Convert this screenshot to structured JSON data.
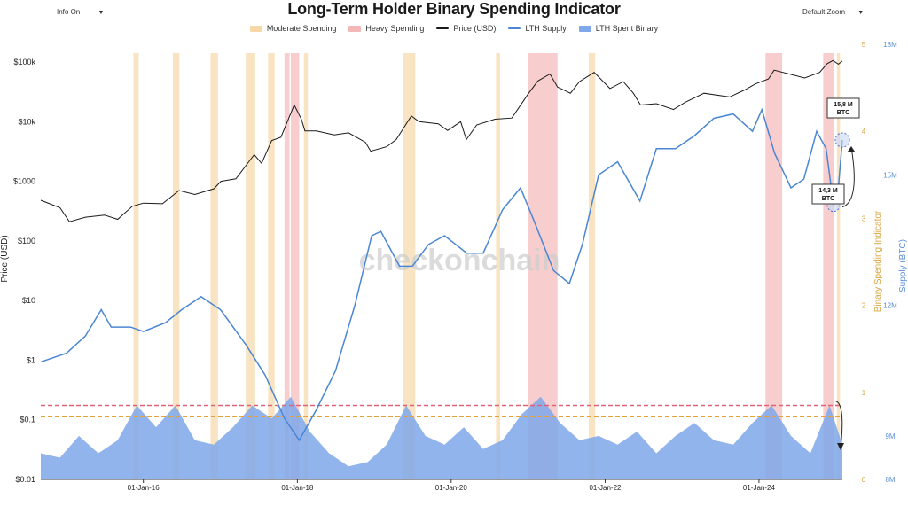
{
  "header": {
    "title": "Long-Term Holder Binary Spending Indicator",
    "info_label": "Info On",
    "zoom_label": "Default Zoom",
    "caret": "▼"
  },
  "legend": [
    {
      "label": "Moderate Spending",
      "color": "#f5d7a8",
      "kind": "box"
    },
    {
      "label": "Heavy Spending",
      "color": "#f4b8b8",
      "kind": "box"
    },
    {
      "label": "Price (USD)",
      "color": "#1a1a1a",
      "kind": "line"
    },
    {
      "label": "LTH Supply",
      "color": "#4a86d4",
      "kind": "line"
    },
    {
      "label": "LTH Spent Binary",
      "color": "#7fa7ea",
      "kind": "box"
    }
  ],
  "watermark": "checkonchain",
  "colors": {
    "price": "#1a1a1a",
    "supply": "#4a86d4",
    "binary": "#7fa7ea",
    "moderate": "#f5d7a8",
    "heavy": "#f4b8b8",
    "heavy_threshold": "#e0627a",
    "moderate_threshold": "#e3a23c",
    "binary_axis": "#d9a441",
    "supply_axis": "#5b8fd6"
  },
  "annotations": {
    "high_label_line1": "15,8 M",
    "high_label_line2": "BTC",
    "low_label_line1": "14,3 M",
    "low_label_line2": "BTC"
  },
  "chart_data": {
    "type": "line",
    "title": "Long-Term Holder Binary Spending Indicator",
    "x_range": [
      "2014-09-01",
      "2025-01-31"
    ],
    "x_ticks": [
      "01-Jan-16",
      "01-Jan-18",
      "01-Jan-20",
      "01-Jan-22",
      "01-Jan-24"
    ],
    "axes": {
      "price": {
        "label": "Price (USD)",
        "scale": "log",
        "range": [
          0.01,
          100000
        ],
        "ticks": [
          "$0.01",
          "$0.1",
          "$1",
          "$10",
          "$100",
          "$1000",
          "$10k",
          "$100k"
        ]
      },
      "binary": {
        "label": "Binary Spending Indicator",
        "range": [
          0,
          5
        ],
        "ticks": [
          "0",
          "1",
          "2",
          "3",
          "4",
          "5"
        ]
      },
      "supply": {
        "label": "Supply (BTC)",
        "range": [
          8,
          18
        ],
        "unit": "M BTC",
        "ticks": [
          "8M",
          "9M",
          "12M",
          "15M",
          "18M"
        ]
      }
    },
    "thresholds": {
      "heavy": 0.85,
      "moderate": 0.72
    },
    "series": [
      {
        "name": "Price (USD)",
        "axis": "price",
        "points": [
          [
            "2014-09-01",
            480
          ],
          [
            "2014-12-01",
            360
          ],
          [
            "2015-01-15",
            210
          ],
          [
            "2015-04-01",
            250
          ],
          [
            "2015-07-01",
            270
          ],
          [
            "2015-09-01",
            230
          ],
          [
            "2015-11-10",
            380
          ],
          [
            "2016-01-01",
            430
          ],
          [
            "2016-04-01",
            420
          ],
          [
            "2016-06-18",
            700
          ],
          [
            "2016-09-01",
            600
          ],
          [
            "2016-12-01",
            750
          ],
          [
            "2017-01-03",
            1000
          ],
          [
            "2017-03-15",
            1100
          ],
          [
            "2017-06-10",
            2800
          ],
          [
            "2017-07-15",
            2000
          ],
          [
            "2017-09-01",
            4800
          ],
          [
            "2017-10-15",
            5500
          ],
          [
            "2017-12-17",
            19000
          ],
          [
            "2018-01-20",
            11000
          ],
          [
            "2018-02-06",
            7000
          ],
          [
            "2018-04-01",
            7000
          ],
          [
            "2018-06-25",
            6000
          ],
          [
            "2018-09-01",
            6500
          ],
          [
            "2018-11-20",
            4500
          ],
          [
            "2018-12-15",
            3200
          ],
          [
            "2019-03-01",
            3800
          ],
          [
            "2019-04-15",
            5000
          ],
          [
            "2019-06-26",
            12500
          ],
          [
            "2019-08-01",
            10000
          ],
          [
            "2019-11-01",
            9200
          ],
          [
            "2019-12-15",
            7100
          ],
          [
            "2020-02-15",
            10000
          ],
          [
            "2020-03-13",
            5000
          ],
          [
            "2020-05-01",
            8800
          ],
          [
            "2020-07-27",
            11000
          ],
          [
            "2020-10-15",
            11500
          ],
          [
            "2020-12-31",
            29000
          ],
          [
            "2021-02-15",
            48000
          ],
          [
            "2021-04-14",
            63000
          ],
          [
            "2021-05-20",
            38000
          ],
          [
            "2021-07-20",
            30000
          ],
          [
            "2021-09-01",
            47000
          ],
          [
            "2021-11-10",
            67000
          ],
          [
            "2022-01-24",
            36000
          ],
          [
            "2022-03-28",
            47000
          ],
          [
            "2022-05-15",
            30000
          ],
          [
            "2022-06-18",
            19000
          ],
          [
            "2022-09-01",
            20000
          ],
          [
            "2022-11-21",
            16000
          ],
          [
            "2023-01-15",
            21000
          ],
          [
            "2023-04-15",
            30000
          ],
          [
            "2023-08-15",
            26000
          ],
          [
            "2023-10-25",
            34000
          ],
          [
            "2023-12-15",
            43000
          ],
          [
            "2024-02-15",
            52000
          ],
          [
            "2024-03-13",
            73000
          ],
          [
            "2024-08-05",
            54000
          ],
          [
            "2024-10-15",
            67000
          ],
          [
            "2024-11-20",
            94000
          ],
          [
            "2024-12-17",
            106000
          ],
          [
            "2025-01-12",
            92000
          ],
          [
            "2025-01-31",
            104000
          ]
        ]
      },
      {
        "name": "LTH Supply",
        "axis": "supply",
        "unit": "M BTC",
        "points": [
          [
            "2014-09-01",
            10.7
          ],
          [
            "2015-01-01",
            10.9
          ],
          [
            "2015-04-01",
            11.3
          ],
          [
            "2015-06-15",
            11.9
          ],
          [
            "2015-08-01",
            11.5
          ],
          [
            "2015-11-01",
            11.5
          ],
          [
            "2016-01-01",
            11.4
          ],
          [
            "2016-04-15",
            11.6
          ],
          [
            "2016-07-01",
            11.9
          ],
          [
            "2016-10-01",
            12.2
          ],
          [
            "2017-01-01",
            11.9
          ],
          [
            "2017-05-01",
            11.1
          ],
          [
            "2017-08-01",
            10.4
          ],
          [
            "2017-11-01",
            9.4
          ],
          [
            "2018-01-10",
            8.9
          ],
          [
            "2018-04-01",
            9.6
          ],
          [
            "2018-07-01",
            10.5
          ],
          [
            "2018-10-01",
            12.0
          ],
          [
            "2018-12-20",
            13.6
          ],
          [
            "2019-02-01",
            13.7
          ],
          [
            "2019-05-01",
            12.9
          ],
          [
            "2019-07-01",
            12.9
          ],
          [
            "2019-09-15",
            13.4
          ],
          [
            "2019-12-01",
            13.6
          ],
          [
            "2020-03-15",
            13.2
          ],
          [
            "2020-06-01",
            13.2
          ],
          [
            "2020-09-01",
            14.2
          ],
          [
            "2020-11-25",
            14.7
          ],
          [
            "2021-02-01",
            13.9
          ],
          [
            "2021-05-01",
            12.8
          ],
          [
            "2021-07-15",
            12.5
          ],
          [
            "2021-09-15",
            13.4
          ],
          [
            "2021-12-01",
            15.0
          ],
          [
            "2022-03-01",
            15.3
          ],
          [
            "2022-06-15",
            14.4
          ],
          [
            "2022-09-01",
            15.6
          ],
          [
            "2022-12-01",
            15.6
          ],
          [
            "2023-03-01",
            15.9
          ],
          [
            "2023-06-01",
            16.3
          ],
          [
            "2023-09-01",
            16.4
          ],
          [
            "2023-12-01",
            16.0
          ],
          [
            "2024-01-15",
            16.5
          ],
          [
            "2024-03-15",
            15.5
          ],
          [
            "2024-06-01",
            14.7
          ],
          [
            "2024-08-01",
            14.9
          ],
          [
            "2024-10-01",
            16.0
          ],
          [
            "2024-11-15",
            15.6
          ],
          [
            "2024-12-20",
            14.3
          ],
          [
            "2025-01-10",
            14.6
          ],
          [
            "2025-01-31",
            15.8
          ]
        ]
      },
      {
        "name": "LTH Spent Binary",
        "axis": "binary",
        "type": "area",
        "points": [
          [
            "2014-09-01",
            0.3
          ],
          [
            "2014-12-01",
            0.25
          ],
          [
            "2015-03-01",
            0.5
          ],
          [
            "2015-06-01",
            0.3
          ],
          [
            "2015-09-01",
            0.45
          ],
          [
            "2015-12-01",
            0.85
          ],
          [
            "2016-03-01",
            0.6
          ],
          [
            "2016-06-01",
            0.85
          ],
          [
            "2016-09-01",
            0.45
          ],
          [
            "2016-12-01",
            0.4
          ],
          [
            "2017-03-01",
            0.6
          ],
          [
            "2017-06-01",
            0.85
          ],
          [
            "2017-09-01",
            0.7
          ],
          [
            "2017-12-01",
            0.95
          ],
          [
            "2018-03-01",
            0.55
          ],
          [
            "2018-06-01",
            0.3
          ],
          [
            "2018-09-01",
            0.15
          ],
          [
            "2018-12-01",
            0.2
          ],
          [
            "2019-03-01",
            0.4
          ],
          [
            "2019-06-01",
            0.85
          ],
          [
            "2019-09-01",
            0.5
          ],
          [
            "2019-12-01",
            0.4
          ],
          [
            "2020-03-01",
            0.6
          ],
          [
            "2020-06-01",
            0.35
          ],
          [
            "2020-09-01",
            0.45
          ],
          [
            "2020-12-01",
            0.75
          ],
          [
            "2021-03-01",
            0.95
          ],
          [
            "2021-06-01",
            0.65
          ],
          [
            "2021-09-01",
            0.45
          ],
          [
            "2021-12-01",
            0.5
          ],
          [
            "2022-03-01",
            0.4
          ],
          [
            "2022-06-01",
            0.55
          ],
          [
            "2022-09-01",
            0.3
          ],
          [
            "2022-12-01",
            0.5
          ],
          [
            "2023-03-01",
            0.65
          ],
          [
            "2023-06-01",
            0.45
          ],
          [
            "2023-09-01",
            0.4
          ],
          [
            "2023-12-01",
            0.65
          ],
          [
            "2024-03-01",
            0.85
          ],
          [
            "2024-06-01",
            0.5
          ],
          [
            "2024-09-01",
            0.3
          ],
          [
            "2024-12-01",
            0.85
          ],
          [
            "2025-01-31",
            0.4
          ]
        ]
      }
    ],
    "spending_bands": [
      {
        "start": "2015-11-15",
        "end": "2015-12-10",
        "level": "moderate"
      },
      {
        "start": "2016-05-20",
        "end": "2016-06-20",
        "level": "moderate"
      },
      {
        "start": "2016-11-15",
        "end": "2016-12-20",
        "level": "moderate"
      },
      {
        "start": "2017-05-01",
        "end": "2017-06-15",
        "level": "moderate"
      },
      {
        "start": "2017-08-15",
        "end": "2017-09-15",
        "level": "moderate"
      },
      {
        "start": "2017-11-01",
        "end": "2017-11-25",
        "level": "heavy"
      },
      {
        "start": "2017-12-01",
        "end": "2018-01-10",
        "level": "heavy"
      },
      {
        "start": "2018-02-01",
        "end": "2018-02-20",
        "level": "moderate"
      },
      {
        "start": "2019-05-20",
        "end": "2019-07-15",
        "level": "moderate"
      },
      {
        "start": "2020-08-01",
        "end": "2020-08-20",
        "level": "moderate"
      },
      {
        "start": "2021-01-01",
        "end": "2021-05-20",
        "level": "heavy"
      },
      {
        "start": "2021-10-15",
        "end": "2021-11-15",
        "level": "moderate"
      },
      {
        "start": "2024-02-01",
        "end": "2024-04-20",
        "level": "heavy"
      },
      {
        "start": "2024-11-01",
        "end": "2024-12-20",
        "level": "heavy"
      },
      {
        "start": "2025-01-05",
        "end": "2025-01-20",
        "level": "moderate"
      }
    ]
  }
}
